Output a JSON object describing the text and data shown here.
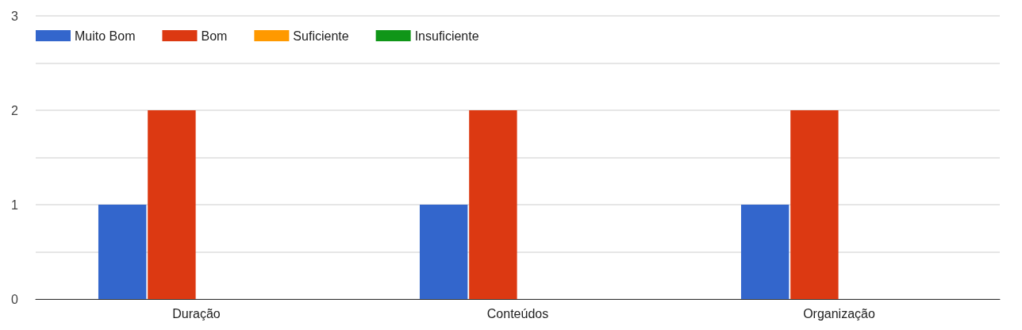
{
  "chart_data": {
    "type": "bar",
    "categories": [
      "Duração",
      "Conteúdos",
      "Organização"
    ],
    "series": [
      {
        "name": "Muito Bom",
        "color": "#3366cc",
        "values": [
          1,
          1,
          1
        ]
      },
      {
        "name": "Bom",
        "color": "#dc3912",
        "values": [
          2,
          2,
          2
        ]
      },
      {
        "name": "Suficiente",
        "color": "#ff9900",
        "values": [
          0,
          0,
          0
        ]
      },
      {
        "name": "Insuficiente",
        "color": "#109618",
        "values": [
          0,
          0,
          0
        ]
      }
    ],
    "ylim": [
      0,
      3
    ],
    "yticks": [
      0,
      {
        "value": 0.5,
        "label": null
      },
      1,
      {
        "value": 1.5,
        "label": null
      },
      2,
      {
        "value": 2.5,
        "label": null
      },
      3
    ],
    "grid": "y",
    "legend": "top left"
  }
}
